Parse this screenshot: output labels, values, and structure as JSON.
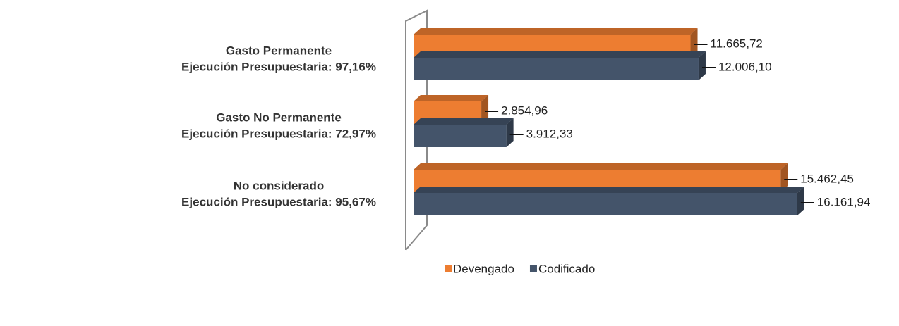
{
  "chart_data": {
    "type": "bar3d_horizontal",
    "categories": [
      [
        "Gasto Permanente",
        "Ejecución Presupuestaria: 97,16%"
      ],
      [
        "Gasto No Permanente",
        "Ejecución Presupuestaria: 72,97%"
      ],
      [
        "No considerado",
        "Ejecución Presupuestaria: 95,67%"
      ]
    ],
    "series": [
      {
        "name": "Devengado",
        "color": "#ed7d31",
        "values": [
          11665.72,
          2854.96,
          15462.45
        ],
        "value_labels": [
          "11.665,72",
          "2.854,96",
          "15.462,45"
        ]
      },
      {
        "name": "Codificado",
        "color": "#44546a",
        "values": [
          12006.1,
          3912.33,
          16161.94
        ],
        "value_labels": [
          "12.006,10",
          "3.912,33",
          "16.161,94"
        ]
      }
    ],
    "xlim": [
      0,
      17000
    ],
    "legend": "bottom"
  }
}
